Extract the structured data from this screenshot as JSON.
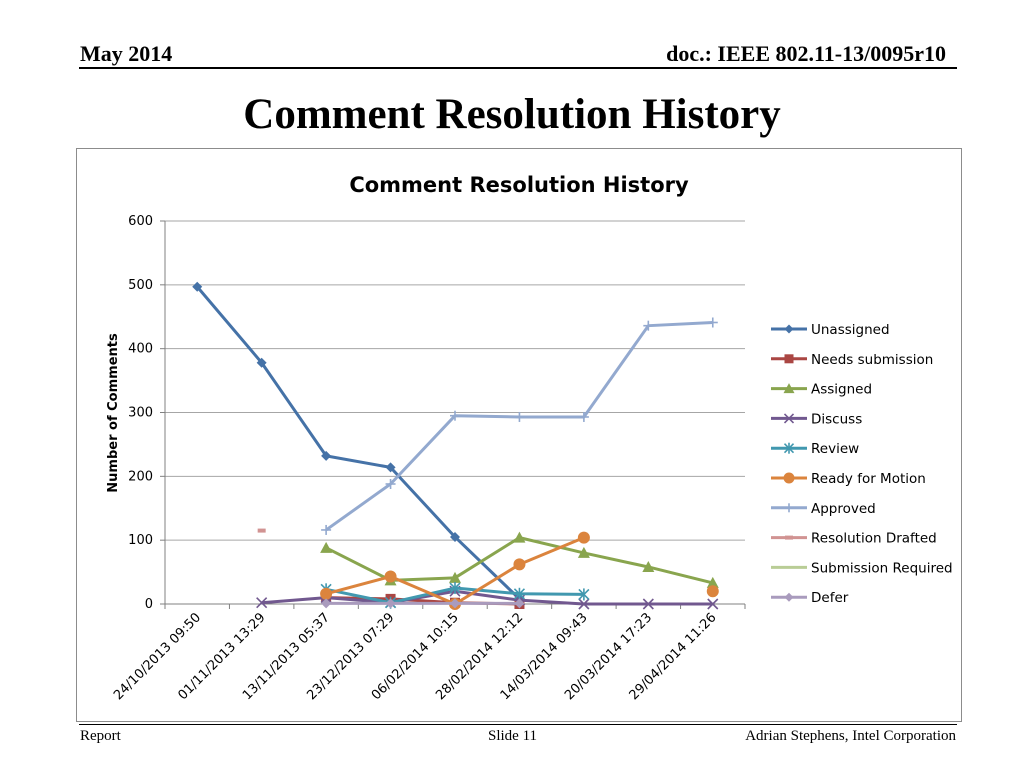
{
  "header": {
    "date": "May 2014",
    "doc": "doc.: IEEE 802.11-13/0095r10"
  },
  "slide_title": "Comment Resolution History",
  "footer": {
    "left": "Report",
    "center": "Slide 11",
    "right": "Adrian Stephens, Intel Corporation"
  },
  "chart_data": {
    "type": "line",
    "title": "Comment Resolution History",
    "ylabel": "Number of Comments",
    "xlabel": "",
    "ylim": [
      0,
      600
    ],
    "yticks": [
      0,
      100,
      200,
      300,
      400,
      500,
      600
    ],
    "grid": true,
    "legend_position": "right",
    "categories": [
      "24/10/2013 09:50",
      "01/11/2013 13:29",
      "13/11/2013 05:37",
      "23/12/2013 07:29",
      "06/02/2014 10:15",
      "28/02/2014 12:12",
      "14/03/2014 09:43",
      "20/03/2014 17:23",
      "29/04/2014 11:26"
    ],
    "series": [
      {
        "name": "Unassigned",
        "color": "#4572A7",
        "marker": "diamond",
        "values": [
          497,
          378,
          232,
          214,
          105,
          8,
          null,
          null,
          null
        ]
      },
      {
        "name": "Needs submission",
        "color": "#AA4643",
        "marker": "square",
        "values": [
          null,
          null,
          10,
          8,
          2,
          0,
          null,
          null,
          null
        ]
      },
      {
        "name": "Assigned",
        "color": "#89A54E",
        "marker": "triangle",
        "values": [
          null,
          null,
          88,
          37,
          41,
          104,
          80,
          58,
          33
        ]
      },
      {
        "name": "Discuss",
        "color": "#71588F",
        "marker": "x",
        "values": [
          null,
          2,
          10,
          2,
          20,
          6,
          0,
          0,
          0
        ]
      },
      {
        "name": "Review",
        "color": "#4198AF",
        "marker": "asterisk",
        "values": [
          null,
          null,
          23,
          2,
          25,
          16,
          15,
          null,
          null
        ]
      },
      {
        "name": "Ready for Motion",
        "color": "#DB843D",
        "marker": "circle",
        "values": [
          null,
          null,
          16,
          43,
          0,
          62,
          104,
          null,
          20
        ]
      },
      {
        "name": "Approved",
        "color": "#93A9CF",
        "marker": "plus",
        "values": [
          null,
          null,
          116,
          188,
          295,
          293,
          293,
          436,
          441
        ]
      },
      {
        "name": "Resolution Drafted",
        "color": "#D19392",
        "marker": "dash",
        "values": [
          null,
          115,
          null,
          null,
          null,
          null,
          null,
          null,
          null
        ]
      },
      {
        "name": "Submission Required",
        "color": "#B9CD96",
        "marker": "none",
        "values": [
          null,
          null,
          null,
          null,
          null,
          null,
          null,
          null,
          null
        ]
      },
      {
        "name": "Defer",
        "color": "#A99BBD",
        "marker": "diamond",
        "values": [
          null,
          null,
          1,
          1,
          1,
          1,
          null,
          null,
          null
        ]
      }
    ]
  }
}
